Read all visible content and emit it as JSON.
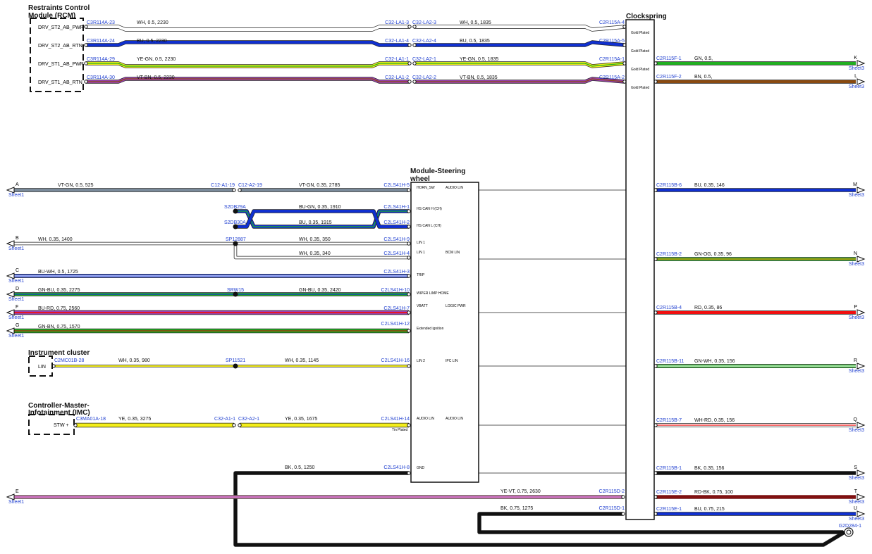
{
  "titles": {
    "rcm_line1": "Restraints Control",
    "rcm_line2": "Module (RCM)",
    "clockspring": "Clockspring",
    "msw_line1": "Module-Steering",
    "msw_line2": "wheel",
    "ic": "Instrument cluster",
    "imc_line1": "Controller-Master-",
    "imc_line2": "Infotainment (IMC)"
  },
  "rcm_pins": [
    "DRV_ST2_AB_PWR",
    "DRV_ST2_AB_RTN",
    "DRV_ST1_AB_PWR",
    "DRV_ST1_AB_RTN"
  ],
  "ic_pin": "LIN",
  "imc_pin": "STW +",
  "gold_plated": "Gold Plated",
  "tin_plated": "Tin Plated",
  "ground_label": "G2D284-1",
  "colors": {
    "WH": "#ffffff",
    "BU": "#1030d0",
    "YE": "#f4ee1a",
    "GN": "#20b020",
    "VT": "#9a40b0",
    "BN": "#8a4a10",
    "GY": "#7a8a9a",
    "OG": "#f08a10",
    "RD": "#f01010",
    "BK": "#111111",
    "PK": "#f0a0c0"
  },
  "airbag_wires": [
    {
      "left_conn": "C3R114A-23",
      "spec1": "WH,  0.5,  2230",
      "mid_a": "C32-LA1-3",
      "mid_b": "C32-LA2-3",
      "spec2": "WH,  0.5,  1835",
      "right_conn": "C2R115A-4",
      "colors": [
        "WH"
      ]
    },
    {
      "left_conn": "C3R114A-24",
      "spec1": "BU,  0.5,  2230",
      "mid_a": "C32-LA1-4",
      "mid_b": "C32-LA2-4",
      "spec2": "BU,  0.5,  1835",
      "right_conn": "C2R115A-5",
      "colors": [
        "BU"
      ]
    },
    {
      "left_conn": "C3R114A-29",
      "spec1": "YE-GN,  0.5,  2230",
      "mid_a": "C32-LA1-1",
      "mid_b": "C32-LA2-1",
      "spec2": "YE-GN,  0.5,  1835",
      "right_conn": "C2R115A-1",
      "colors": [
        "YE",
        "GN"
      ]
    },
    {
      "left_conn": "C3R114A-30",
      "spec1": "VT-BN,  0.5,  2230",
      "mid_a": "C32-LA1-2",
      "mid_b": "C32-LA2-2",
      "spec2": "VT-BN,  0.5,  1835",
      "right_conn": "C2R115A-2",
      "colors": [
        "VT",
        "BN"
      ]
    }
  ],
  "right_wires": [
    {
      "conn": "C2R115F-1",
      "spec": "GN,  0.5,",
      "letter": "K",
      "sheet": "Sheet3",
      "colors": [
        "GN"
      ]
    },
    {
      "conn": "C2R115F-2",
      "spec": "BN,  0.5,",
      "letter": "L",
      "sheet": "Sheet3",
      "colors": [
        "BN"
      ]
    },
    {
      "conn": "C2R115B-6",
      "spec": "BU,  0.35,  146",
      "letter": "M",
      "sheet": "Sheet3",
      "colors": [
        "BU"
      ]
    },
    {
      "conn": "C2R115B-2",
      "spec": "GN-OG,  0.35,  96",
      "letter": "N",
      "sheet": "Sheet3",
      "colors": [
        "GN",
        "OG"
      ]
    },
    {
      "conn": "C2R115B-4",
      "spec": "RD,  0.35,  86",
      "letter": "P",
      "sheet": "Sheet3",
      "colors": [
        "RD"
      ]
    },
    {
      "conn": "C2R115B-11",
      "spec": "GN-WH,  0.35,  156",
      "letter": "R",
      "sheet": "Sheet3",
      "colors": [
        "GN",
        "WH"
      ]
    },
    {
      "conn": "C2R115B-7",
      "spec": "WH-RD,  0.35,  156",
      "letter": "Q",
      "sheet": "Sheet3",
      "colors": [
        "WH",
        "RD"
      ]
    },
    {
      "conn": "C2R115B-1",
      "spec": "BK,  0.35,  156",
      "letter": "S",
      "sheet": "Sheet3",
      "colors": [
        "BK"
      ]
    },
    {
      "conn": "C2R115E-2",
      "spec": "RD-BK,  0.75,  100",
      "letter": "T",
      "sheet": "Sheet3",
      "colors": [
        "RD",
        "BK"
      ]
    },
    {
      "conn": "C2R115E-1",
      "spec": "BU,  0.75,  215",
      "letter": "U",
      "sheet": "Sheet3",
      "colors": [
        "BU"
      ]
    }
  ],
  "msw_left_pins": [
    "HORN_SW",
    "HS CAN H (CH)",
    "HS CAN L (CH)",
    "LIN 1",
    "LIN 1",
    "TRIP",
    "WIPER LIMP HOME",
    "VBATT",
    "Extended ignition",
    "LIN 2",
    "AUDIO LIN",
    "GND"
  ],
  "msw_right_pins": [
    "AUDIO LIN",
    "BCM LIN",
    "LOGIC PWR",
    "IPC LIN",
    "AUDIO LIN"
  ],
  "left_wires": {
    "A": {
      "letter": "A",
      "sheet": "Sheet1",
      "spec1": "VT-GN,  0.5,  525",
      "mid_a": "C12-A1-19",
      "mid_b": "C12-A2-19",
      "spec2": "VT-GN,  0.35,  2785",
      "conn": "C2LS41H-5"
    },
    "CANH": {
      "splice": "S2DB29A",
      "spec": "BU-GN,  0.35,  1910",
      "conn": "C2LS41H-1"
    },
    "CANL": {
      "splice": "S2DB30A",
      "spec": "BU,  0.35,  1915",
      "conn": "C2LS41H-2"
    },
    "B": {
      "letter": "B",
      "sheet": "Sheet1",
      "spec1": "WH,  0.35,  1400",
      "splice": "SP12887",
      "spec2": "WH,  0.35,  350",
      "conn": "C2LS41H-9",
      "spec3": "WH,  0.35,  340",
      "conn2": "C2LS41H-4"
    },
    "C": {
      "letter": "C",
      "sheet": "Sheet1",
      "spec": "BU-WH,  0.5,  1725",
      "conn": "C2LS41H-3"
    },
    "D": {
      "letter": "D",
      "sheet": "Sheet1",
      "spec1": "GN-BU,  0.35,  2275",
      "splice": "SRW15",
      "spec2": "GN-BU,  0.35,  2420",
      "conn": "C2LS41H-10"
    },
    "F": {
      "letter": "F",
      "sheet": "Sheet1",
      "spec": "BU-RD,  0.75,  2560",
      "conn": "C2LS41H-7"
    },
    "G": {
      "letter": "G",
      "sheet": "Sheet1",
      "spec": "GN-BN,  0.75,  1570",
      "conn": "C2LS41H-12"
    },
    "IC": {
      "conn0": "C2MC01B-28",
      "spec1": "WH,  0.35,  980",
      "splice": "SP11521",
      "spec2": "WH,  0.35,  1145",
      "conn": "C2LS41H-16"
    },
    "IMC": {
      "conn0": "C3MA01A-18",
      "spec1": "YE,  0.35,  3275",
      "mid_a": "C32-A1-1",
      "mid_b": "C32-A2-1",
      "spec2": "YE,  0.35,  1675",
      "conn": "C2LS41H-14"
    },
    "GND": {
      "spec": "BK,  0.5,  1250",
      "conn": "C2LS41H-8"
    },
    "E": {
      "letter": "E",
      "sheet": "Sheet1",
      "spec": "YE-VT,  0.75,  2630",
      "conn": "C2R115D-2"
    },
    "BK2": {
      "spec": "BK,  0.75,  1275",
      "conn": "C2R115D-1"
    }
  }
}
